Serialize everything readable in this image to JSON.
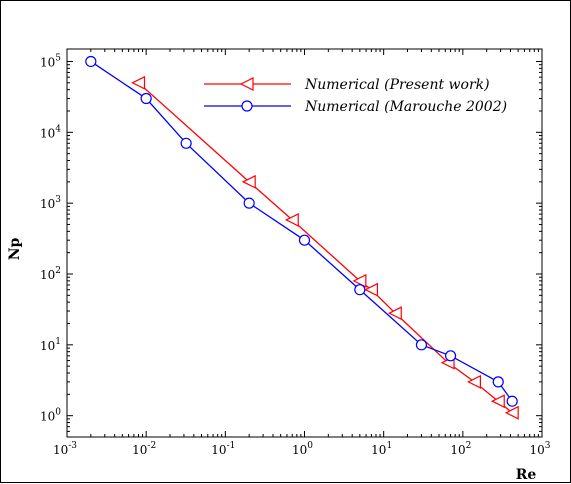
{
  "chart_data": {
    "type": "line",
    "xlabel": "Re",
    "ylabel": "Np",
    "xscale": "log",
    "yscale": "log",
    "xlim": [
      0.001,
      1000
    ],
    "ylim": [
      0.5,
      150000
    ],
    "legend_position": "top-right",
    "x_ticks": [
      {
        "value": 0.001,
        "base": "10",
        "exp": "-3"
      },
      {
        "value": 0.01,
        "base": "10",
        "exp": "-2"
      },
      {
        "value": 0.1,
        "base": "10",
        "exp": "-1"
      },
      {
        "value": 1,
        "base": "10",
        "exp": "0"
      },
      {
        "value": 10,
        "base": "10",
        "exp": "1"
      },
      {
        "value": 100,
        "base": "10",
        "exp": "2"
      },
      {
        "value": 1000,
        "base": "10",
        "exp": "3"
      }
    ],
    "y_ticks": [
      {
        "value": 1,
        "base": "10",
        "exp": "0"
      },
      {
        "value": 10,
        "base": "10",
        "exp": "1"
      },
      {
        "value": 100,
        "base": "10",
        "exp": "2"
      },
      {
        "value": 1000,
        "base": "10",
        "exp": "3"
      },
      {
        "value": 10000,
        "base": "10",
        "exp": "4"
      },
      {
        "value": 100000,
        "base": "10",
        "exp": "5"
      }
    ],
    "series": [
      {
        "name": "Numerical (Present work)",
        "color": "#ff0000",
        "marker": "triangle-left",
        "points": [
          [
            0.008,
            50000
          ],
          [
            0.2,
            2000
          ],
          [
            0.7,
            580
          ],
          [
            5,
            80
          ],
          [
            7,
            60
          ],
          [
            14,
            28
          ],
          [
            65,
            5.6
          ],
          [
            140,
            3
          ],
          [
            280,
            1.6
          ],
          [
            420,
            1.1
          ]
        ]
      },
      {
        "name": "Numerical (Marouche 2002)",
        "color": "#0000ff",
        "marker": "circle",
        "points": [
          [
            0.002,
            100000
          ],
          [
            0.01,
            30000
          ],
          [
            0.032,
            7000
          ],
          [
            0.2,
            1000
          ],
          [
            1,
            300
          ],
          [
            5,
            60
          ],
          [
            30,
            10
          ],
          [
            70,
            7
          ],
          [
            280,
            3
          ],
          [
            420,
            1.6
          ]
        ]
      }
    ]
  }
}
